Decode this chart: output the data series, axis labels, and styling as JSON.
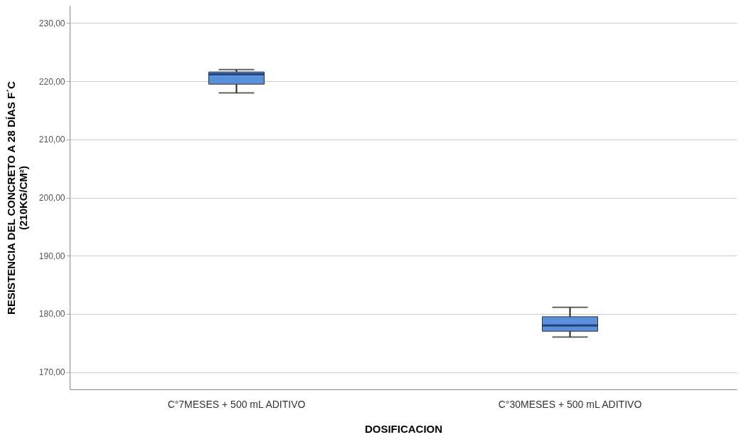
{
  "chart_data": {
    "type": "box",
    "xlabel": "DOSIFICACION",
    "ylabel": "RESISTENCIA DEL CONCRETO A 28 DÍAS F´C\n(210KG/CM²)",
    "categories": [
      "C°7MESES + 500 mL ADITIVO",
      "C°30MESES + 500 mL ADITIVO"
    ],
    "boxes": [
      {
        "low": 218,
        "q1": 219.5,
        "median": 221.2,
        "q3": 221.6,
        "high": 222
      },
      {
        "low": 176,
        "q1": 177,
        "median": 178,
        "q3": 179.5,
        "high": 181.1
      }
    ],
    "color": "#5a8fdc",
    "ylim": [
      167,
      233
    ],
    "yticks": [
      {
        "value": 170,
        "label": "170,00"
      },
      {
        "value": 180,
        "label": "180,00"
      },
      {
        "value": 190,
        "label": "190,00"
      },
      {
        "value": 200,
        "label": "200,00"
      },
      {
        "value": 210,
        "label": "210,00"
      },
      {
        "value": 220,
        "label": "220,00"
      },
      {
        "value": 230,
        "label": "230,00"
      }
    ],
    "grid": "y"
  }
}
